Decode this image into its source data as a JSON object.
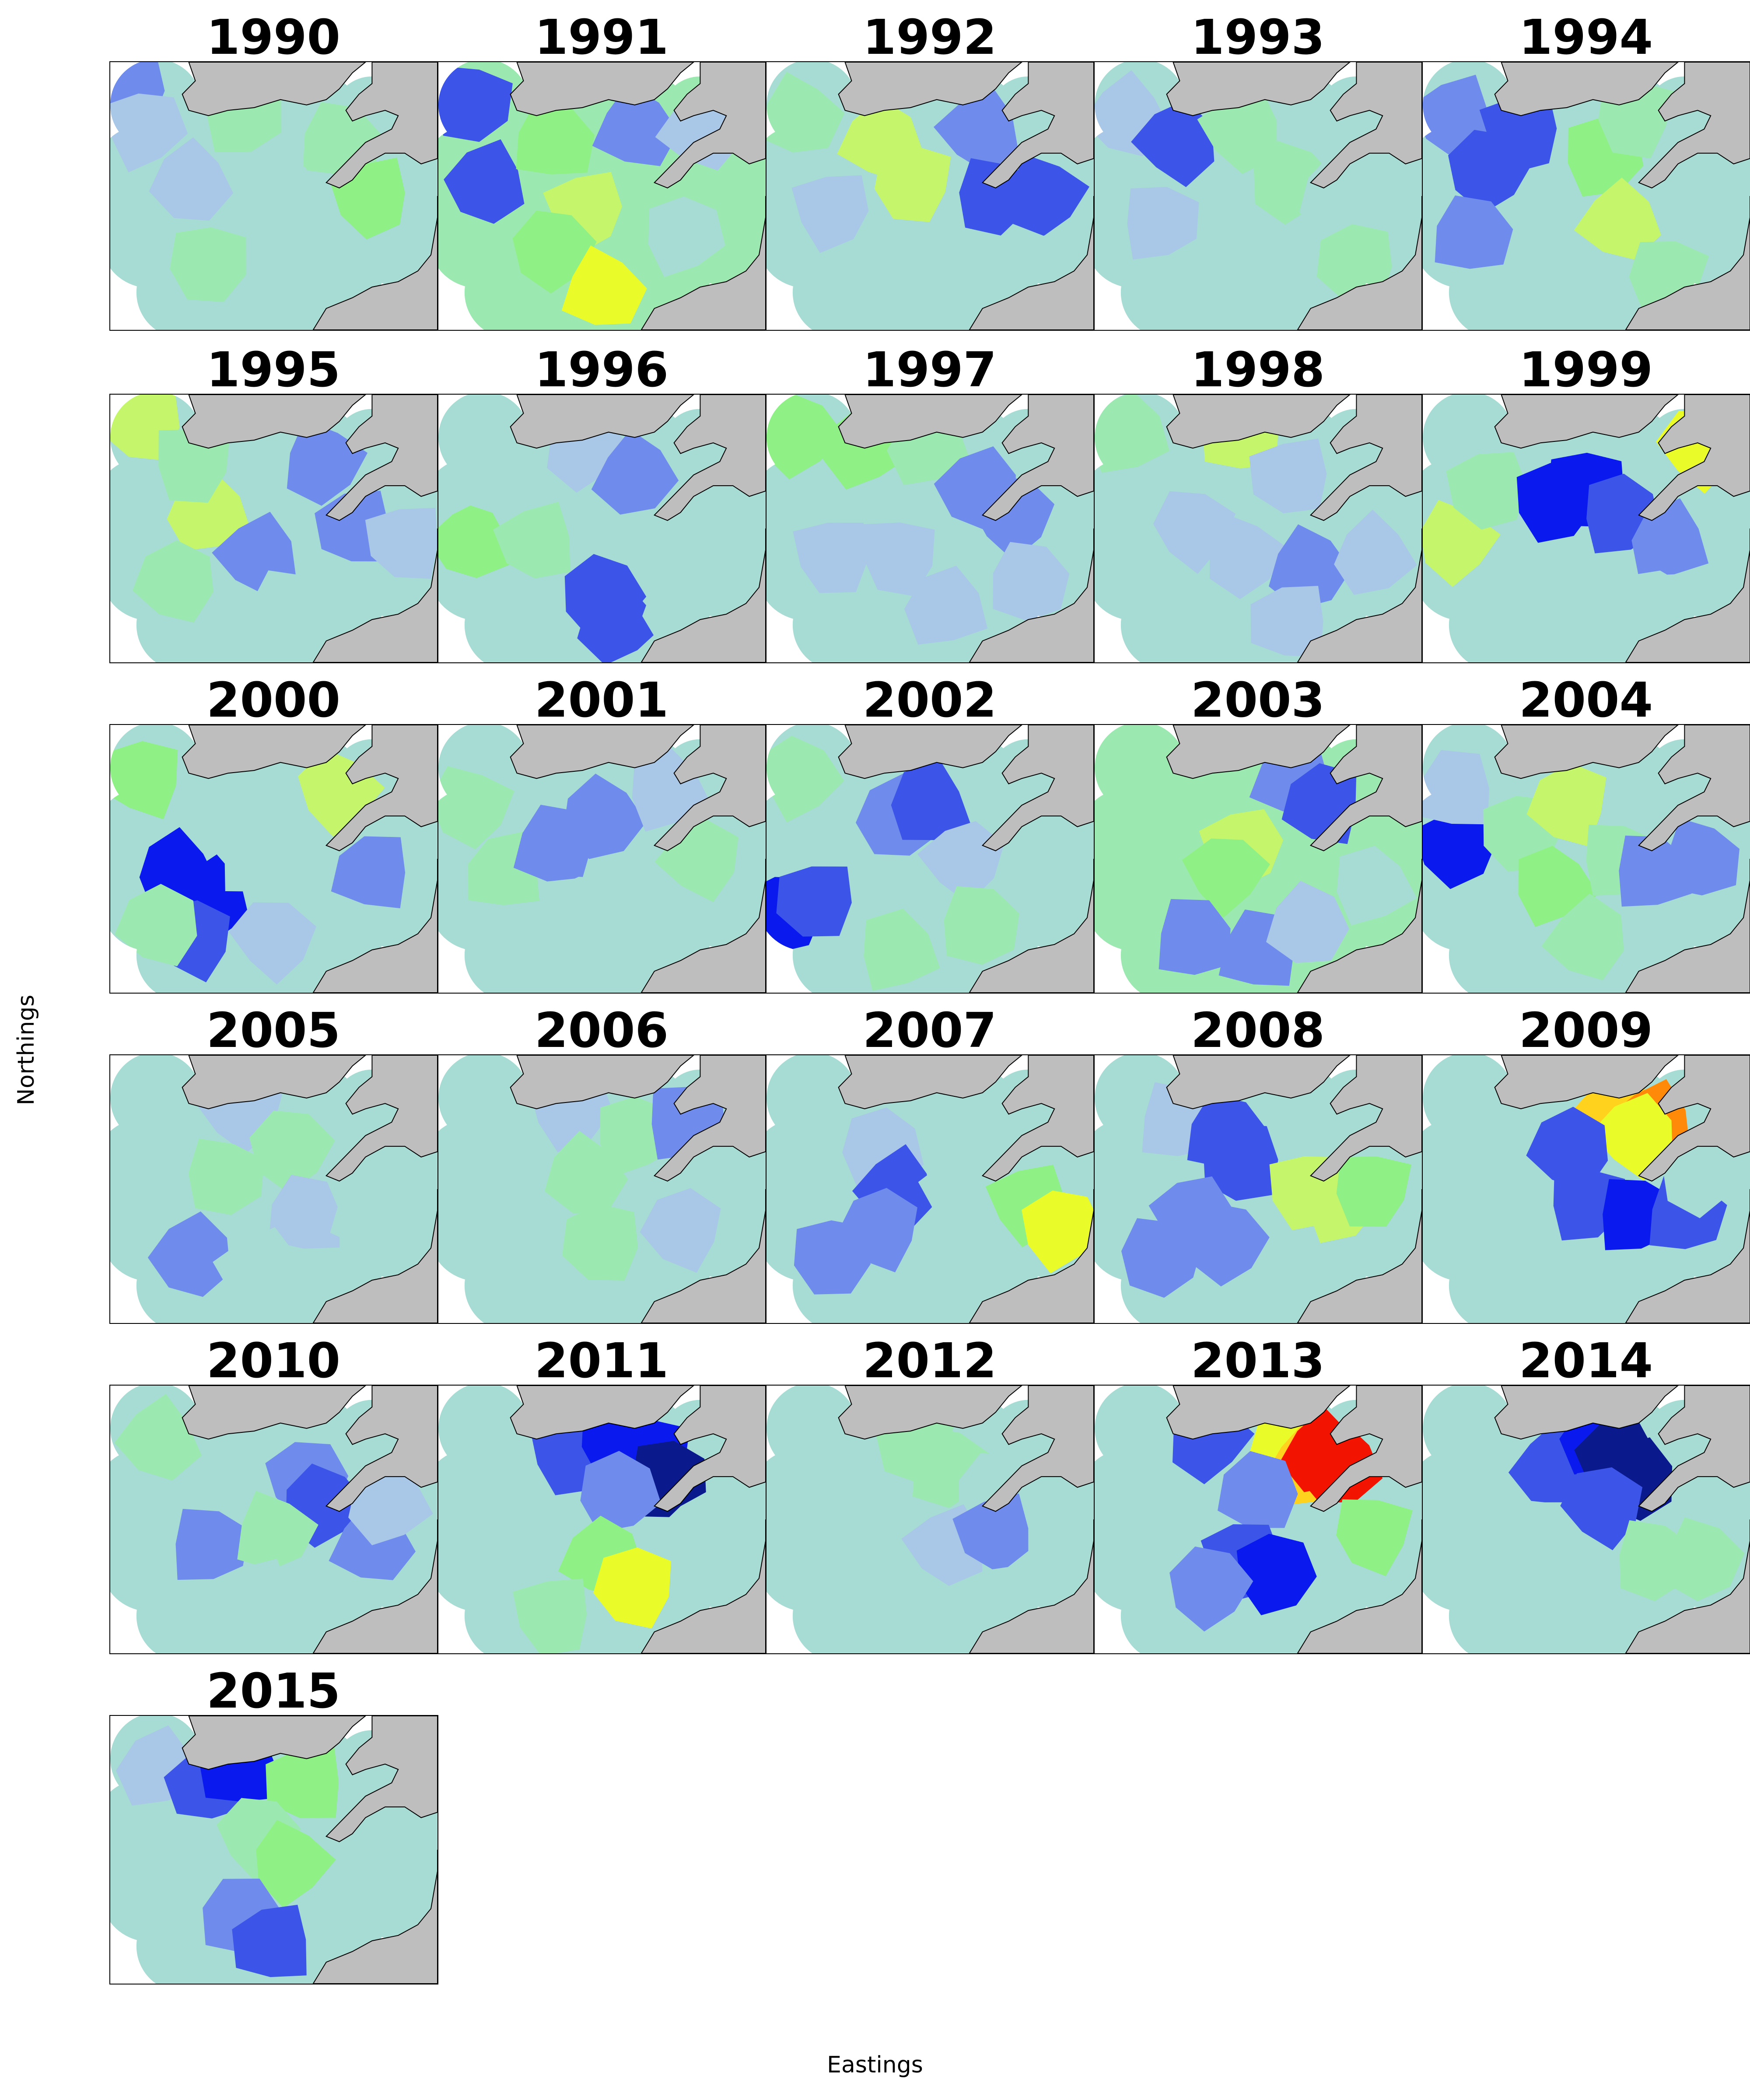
{
  "figure": {
    "xlabel": "Eastings",
    "ylabel": "Northings"
  },
  "colors": {
    "land": "#bebebe",
    "sea": "#ffffff",
    "coastline": "#000000",
    "palette": [
      "#0a1a8c",
      "#0a1aee",
      "#3c55e8",
      "#6f8ced",
      "#a9c7e6",
      "#a6dcd4",
      "#9be8b0",
      "#8ff086",
      "#c5f56a",
      "#eafb2a",
      "#ffd21e",
      "#ff8a0a",
      "#f21400"
    ]
  },
  "panels": [
    {
      "year": "1990",
      "base": 5,
      "regions": [
        [
          0.05,
          0.1,
          3
        ],
        [
          0.1,
          0.25,
          4
        ],
        [
          0.4,
          0.2,
          6
        ],
        [
          0.7,
          0.3,
          6
        ],
        [
          0.25,
          0.45,
          4
        ],
        [
          0.55,
          0.55,
          5
        ],
        [
          0.8,
          0.5,
          7
        ],
        [
          0.3,
          0.75,
          6
        ],
        [
          0.65,
          0.8,
          5
        ]
      ]
    },
    {
      "year": "1991",
      "base": 6,
      "regions": [
        [
          0.1,
          0.15,
          2
        ],
        [
          0.15,
          0.45,
          2
        ],
        [
          0.35,
          0.3,
          7
        ],
        [
          0.6,
          0.25,
          3
        ],
        [
          0.8,
          0.25,
          4
        ],
        [
          0.45,
          0.55,
          8
        ],
        [
          0.35,
          0.7,
          7
        ],
        [
          0.5,
          0.85,
          9
        ],
        [
          0.75,
          0.65,
          5
        ]
      ]
    },
    {
      "year": "1992",
      "base": 5,
      "regions": [
        [
          0.1,
          0.2,
          6
        ],
        [
          0.35,
          0.3,
          8
        ],
        [
          0.45,
          0.45,
          8
        ],
        [
          0.65,
          0.25,
          3
        ],
        [
          0.7,
          0.5,
          2
        ],
        [
          0.85,
          0.5,
          2
        ],
        [
          0.2,
          0.55,
          4
        ],
        [
          0.5,
          0.8,
          5
        ],
        [
          0.8,
          0.8,
          5
        ]
      ]
    },
    {
      "year": "1993",
      "base": 5,
      "regions": [
        [
          0.1,
          0.2,
          4
        ],
        [
          0.25,
          0.3,
          2
        ],
        [
          0.45,
          0.25,
          6
        ],
        [
          0.6,
          0.45,
          6
        ],
        [
          0.2,
          0.6,
          4
        ],
        [
          0.45,
          0.7,
          5
        ],
        [
          0.75,
          0.5,
          5
        ],
        [
          0.8,
          0.75,
          6
        ]
      ]
    },
    {
      "year": "1994",
      "base": 5,
      "regions": [
        [
          0.1,
          0.2,
          3
        ],
        [
          0.2,
          0.4,
          2
        ],
        [
          0.3,
          0.25,
          2
        ],
        [
          0.15,
          0.65,
          3
        ],
        [
          0.55,
          0.35,
          7
        ],
        [
          0.6,
          0.6,
          8
        ],
        [
          0.65,
          0.2,
          6
        ],
        [
          0.85,
          0.4,
          5
        ],
        [
          0.75,
          0.8,
          6
        ]
      ]
    },
    {
      "year": "1995",
      "base": 5,
      "regions": [
        [
          0.1,
          0.1,
          8
        ],
        [
          0.3,
          0.45,
          8
        ],
        [
          0.25,
          0.25,
          6
        ],
        [
          0.45,
          0.6,
          3
        ],
        [
          0.65,
          0.25,
          3
        ],
        [
          0.75,
          0.5,
          3
        ],
        [
          0.9,
          0.55,
          4
        ],
        [
          0.2,
          0.7,
          6
        ],
        [
          0.55,
          0.8,
          5
        ]
      ]
    },
    {
      "year": "1996",
      "base": 5,
      "regions": [
        [
          0.1,
          0.55,
          7
        ],
        [
          0.3,
          0.55,
          6
        ],
        [
          0.45,
          0.2,
          4
        ],
        [
          0.6,
          0.3,
          3
        ],
        [
          0.5,
          0.75,
          2
        ],
        [
          0.55,
          0.85,
          2
        ],
        [
          0.8,
          0.5,
          5
        ],
        [
          0.2,
          0.3,
          5
        ],
        [
          0.75,
          0.8,
          5
        ]
      ]
    },
    {
      "year": "1997",
      "base": 5,
      "regions": [
        [
          0.1,
          0.15,
          7
        ],
        [
          0.3,
          0.2,
          7
        ],
        [
          0.5,
          0.2,
          6
        ],
        [
          0.65,
          0.35,
          3
        ],
        [
          0.75,
          0.45,
          3
        ],
        [
          0.2,
          0.6,
          4
        ],
        [
          0.4,
          0.6,
          4
        ],
        [
          0.8,
          0.7,
          4
        ],
        [
          0.55,
          0.8,
          4
        ]
      ]
    },
    {
      "year": "1998",
      "base": 5,
      "regions": [
        [
          0.1,
          0.15,
          6
        ],
        [
          0.45,
          0.15,
          8
        ],
        [
          0.6,
          0.3,
          4
        ],
        [
          0.3,
          0.5,
          4
        ],
        [
          0.45,
          0.6,
          4
        ],
        [
          0.65,
          0.65,
          3
        ],
        [
          0.85,
          0.6,
          4
        ],
        [
          0.2,
          0.75,
          5
        ],
        [
          0.6,
          0.85,
          4
        ]
      ]
    },
    {
      "year": "1999",
      "base": 5,
      "regions": [
        [
          0.1,
          0.55,
          8
        ],
        [
          0.2,
          0.35,
          6
        ],
        [
          0.4,
          0.4,
          1
        ],
        [
          0.5,
          0.35,
          1
        ],
        [
          0.6,
          0.45,
          2
        ],
        [
          0.75,
          0.55,
          3
        ],
        [
          0.85,
          0.2,
          9
        ],
        [
          0.35,
          0.8,
          5
        ],
        [
          0.7,
          0.8,
          5
        ]
      ]
    },
    {
      "year": "2000",
      "base": 5,
      "regions": [
        [
          0.1,
          0.2,
          7
        ],
        [
          0.2,
          0.55,
          1
        ],
        [
          0.3,
          0.65,
          1
        ],
        [
          0.25,
          0.8,
          2
        ],
        [
          0.45,
          0.5,
          5
        ],
        [
          0.7,
          0.25,
          8
        ],
        [
          0.8,
          0.55,
          3
        ],
        [
          0.5,
          0.8,
          4
        ],
        [
          0.15,
          0.75,
          6
        ]
      ]
    },
    {
      "year": "2001",
      "base": 5,
      "regions": [
        [
          0.1,
          0.3,
          6
        ],
        [
          0.2,
          0.55,
          6
        ],
        [
          0.35,
          0.45,
          3
        ],
        [
          0.5,
          0.35,
          3
        ],
        [
          0.7,
          0.25,
          4
        ],
        [
          0.8,
          0.5,
          6
        ],
        [
          0.45,
          0.7,
          5
        ],
        [
          0.7,
          0.75,
          5
        ]
      ]
    },
    {
      "year": "2002",
      "base": 5,
      "regions": [
        [
          0.1,
          0.2,
          6
        ],
        [
          0.05,
          0.7,
          1
        ],
        [
          0.15,
          0.65,
          2
        ],
        [
          0.4,
          0.35,
          3
        ],
        [
          0.5,
          0.3,
          2
        ],
        [
          0.6,
          0.5,
          4
        ],
        [
          0.4,
          0.85,
          6
        ],
        [
          0.65,
          0.75,
          6
        ],
        [
          0.85,
          0.6,
          5
        ]
      ]
    },
    {
      "year": "2003",
      "base": 6,
      "regions": [
        [
          0.15,
          0.25,
          6
        ],
        [
          0.45,
          0.45,
          8
        ],
        [
          0.4,
          0.55,
          7
        ],
        [
          0.6,
          0.2,
          3
        ],
        [
          0.7,
          0.3,
          2
        ],
        [
          0.3,
          0.8,
          3
        ],
        [
          0.5,
          0.85,
          3
        ],
        [
          0.65,
          0.75,
          4
        ],
        [
          0.85,
          0.6,
          5
        ]
      ]
    },
    {
      "year": "2004",
      "base": 5,
      "regions": [
        [
          0.1,
          0.45,
          1
        ],
        [
          0.1,
          0.25,
          4
        ],
        [
          0.3,
          0.4,
          6
        ],
        [
          0.45,
          0.3,
          8
        ],
        [
          0.4,
          0.6,
          7
        ],
        [
          0.6,
          0.5,
          6
        ],
        [
          0.7,
          0.55,
          3
        ],
        [
          0.85,
          0.5,
          3
        ],
        [
          0.5,
          0.8,
          6
        ]
      ]
    },
    {
      "year": "2005",
      "base": 5,
      "regions": [
        [
          0.15,
          0.2,
          5
        ],
        [
          0.4,
          0.2,
          4
        ],
        [
          0.35,
          0.45,
          6
        ],
        [
          0.55,
          0.35,
          6
        ],
        [
          0.25,
          0.75,
          3
        ],
        [
          0.6,
          0.6,
          4
        ],
        [
          0.8,
          0.6,
          5
        ],
        [
          0.45,
          0.8,
          5
        ]
      ]
    },
    {
      "year": "2006",
      "base": 5,
      "regions": [
        [
          0.15,
          0.25,
          5
        ],
        [
          0.4,
          0.2,
          4
        ],
        [
          0.45,
          0.45,
          6
        ],
        [
          0.6,
          0.3,
          6
        ],
        [
          0.75,
          0.25,
          3
        ],
        [
          0.5,
          0.7,
          6
        ],
        [
          0.75,
          0.65,
          4
        ],
        [
          0.25,
          0.7,
          5
        ]
      ]
    },
    {
      "year": "2007",
      "base": 5,
      "regions": [
        [
          0.2,
          0.2,
          5
        ],
        [
          0.35,
          0.35,
          4
        ],
        [
          0.4,
          0.5,
          2
        ],
        [
          0.35,
          0.65,
          3
        ],
        [
          0.2,
          0.75,
          3
        ],
        [
          0.6,
          0.5,
          5
        ],
        [
          0.8,
          0.55,
          7
        ],
        [
          0.9,
          0.65,
          9
        ],
        [
          0.6,
          0.8,
          5
        ]
      ]
    },
    {
      "year": "2008",
      "base": 5,
      "regions": [
        [
          0.25,
          0.25,
          4
        ],
        [
          0.4,
          0.3,
          2
        ],
        [
          0.45,
          0.4,
          2
        ],
        [
          0.3,
          0.6,
          3
        ],
        [
          0.2,
          0.75,
          3
        ],
        [
          0.4,
          0.7,
          3
        ],
        [
          0.65,
          0.5,
          8
        ],
        [
          0.75,
          0.55,
          8
        ],
        [
          0.85,
          0.5,
          7
        ],
        [
          0.6,
          0.85,
          5
        ]
      ]
    },
    {
      "year": "2009",
      "base": 5,
      "regions": [
        [
          0.6,
          0.2,
          10
        ],
        [
          0.7,
          0.25,
          11
        ],
        [
          0.65,
          0.3,
          9
        ],
        [
          0.45,
          0.35,
          2
        ],
        [
          0.5,
          0.55,
          2
        ],
        [
          0.65,
          0.6,
          1
        ],
        [
          0.8,
          0.6,
          2
        ],
        [
          0.3,
          0.7,
          5
        ],
        [
          0.85,
          0.45,
          5
        ]
      ]
    },
    {
      "year": "2010",
      "base": 5,
      "regions": [
        [
          0.15,
          0.2,
          6
        ],
        [
          0.6,
          0.35,
          3
        ],
        [
          0.65,
          0.45,
          2
        ],
        [
          0.3,
          0.6,
          3
        ],
        [
          0.5,
          0.55,
          6
        ],
        [
          0.8,
          0.6,
          3
        ],
        [
          0.85,
          0.45,
          4
        ],
        [
          0.45,
          0.8,
          5
        ]
      ]
    },
    {
      "year": "2011",
      "base": 5,
      "regions": [
        [
          0.4,
          0.25,
          2
        ],
        [
          0.55,
          0.2,
          1
        ],
        [
          0.65,
          0.25,
          1
        ],
        [
          0.7,
          0.35,
          0
        ],
        [
          0.55,
          0.4,
          3
        ],
        [
          0.5,
          0.65,
          7
        ],
        [
          0.6,
          0.75,
          9
        ],
        [
          0.35,
          0.85,
          6
        ],
        [
          0.8,
          0.55,
          5
        ]
      ]
    },
    {
      "year": "2012",
      "base": 5,
      "regions": [
        [
          0.2,
          0.2,
          5
        ],
        [
          0.45,
          0.2,
          6
        ],
        [
          0.55,
          0.3,
          6
        ],
        [
          0.7,
          0.4,
          5
        ],
        [
          0.55,
          0.6,
          4
        ],
        [
          0.7,
          0.55,
          3
        ],
        [
          0.4,
          0.8,
          5
        ],
        [
          0.85,
          0.75,
          5
        ]
      ]
    },
    {
      "year": "2013",
      "base": 5,
      "regions": [
        [
          0.35,
          0.2,
          2
        ],
        [
          0.6,
          0.2,
          9
        ],
        [
          0.65,
          0.3,
          10
        ],
        [
          0.7,
          0.25,
          12
        ],
        [
          0.75,
          0.3,
          12
        ],
        [
          0.5,
          0.4,
          3
        ],
        [
          0.45,
          0.65,
          2
        ],
        [
          0.55,
          0.7,
          1
        ],
        [
          0.35,
          0.75,
          3
        ],
        [
          0.85,
          0.55,
          7
        ]
      ]
    },
    {
      "year": "2014",
      "base": 5,
      "regions": [
        [
          0.4,
          0.3,
          2
        ],
        [
          0.55,
          0.2,
          1
        ],
        [
          0.6,
          0.25,
          0
        ],
        [
          0.65,
          0.35,
          0
        ],
        [
          0.55,
          0.45,
          2
        ],
        [
          0.3,
          0.55,
          5
        ],
        [
          0.7,
          0.65,
          6
        ],
        [
          0.85,
          0.65,
          6
        ],
        [
          0.45,
          0.8,
          5
        ]
      ]
    },
    {
      "year": "2015",
      "base": 5,
      "regions": [
        [
          0.15,
          0.2,
          4
        ],
        [
          0.3,
          0.25,
          2
        ],
        [
          0.4,
          0.2,
          1
        ],
        [
          0.6,
          0.25,
          7
        ],
        [
          0.45,
          0.45,
          6
        ],
        [
          0.55,
          0.55,
          7
        ],
        [
          0.25,
          0.7,
          5
        ],
        [
          0.4,
          0.75,
          3
        ],
        [
          0.5,
          0.85,
          2
        ],
        [
          0.8,
          0.6,
          5
        ]
      ]
    }
  ]
}
